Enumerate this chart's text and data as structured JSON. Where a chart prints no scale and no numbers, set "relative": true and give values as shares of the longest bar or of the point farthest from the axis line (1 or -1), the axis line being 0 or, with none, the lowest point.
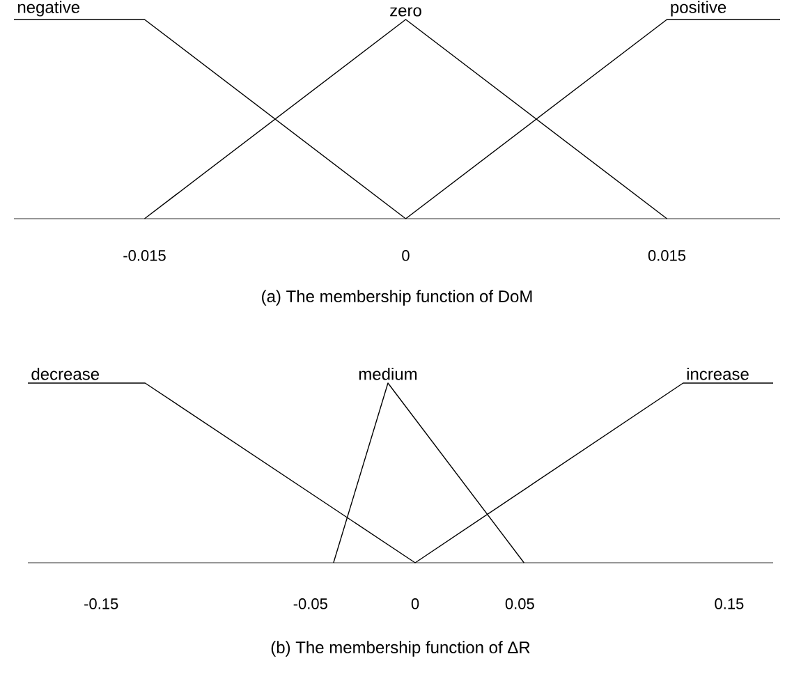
{
  "chart_data": [
    {
      "type": "line",
      "relative": true,
      "xlabel": "(a) The membership function of DoM",
      "xlim": [
        -0.0225,
        0.0215
      ],
      "xticks": [
        -0.015,
        0,
        0.015
      ],
      "line_style": "solid",
      "series": [
        {
          "name": "negative",
          "color": "#000000",
          "x": [
            -0.0225,
            -0.015,
            0
          ],
          "values": [
            1,
            1,
            0
          ]
        },
        {
          "name": "zero",
          "color": "#000000",
          "x": [
            -0.015,
            0,
            0.015
          ],
          "values": [
            0,
            1,
            0
          ]
        },
        {
          "name": "positive",
          "color": "#000000",
          "x": [
            0,
            0.015,
            0.0215
          ],
          "values": [
            0,
            1,
            1
          ]
        }
      ]
    },
    {
      "type": "line",
      "relative": true,
      "xlabel": "(b) The membership function of ΔR",
      "xlim": [
        -0.185,
        0.171
      ],
      "xticks": [
        -0.15,
        -0.05,
        0,
        0.05,
        0.15
      ],
      "line_style": "solid",
      "series": [
        {
          "name": "decrease",
          "color": "#000000",
          "x": [
            -0.185,
            -0.129,
            0
          ],
          "values": [
            1,
            1,
            0
          ]
        },
        {
          "name": "medium",
          "color": "#000000",
          "x": [
            -0.039,
            -0.013,
            0.052
          ],
          "values": [
            0,
            1,
            0
          ]
        },
        {
          "name": "increase",
          "color": "#000000",
          "x": [
            0,
            0.128,
            0.171
          ],
          "values": [
            0,
            1,
            1
          ]
        }
      ]
    }
  ]
}
